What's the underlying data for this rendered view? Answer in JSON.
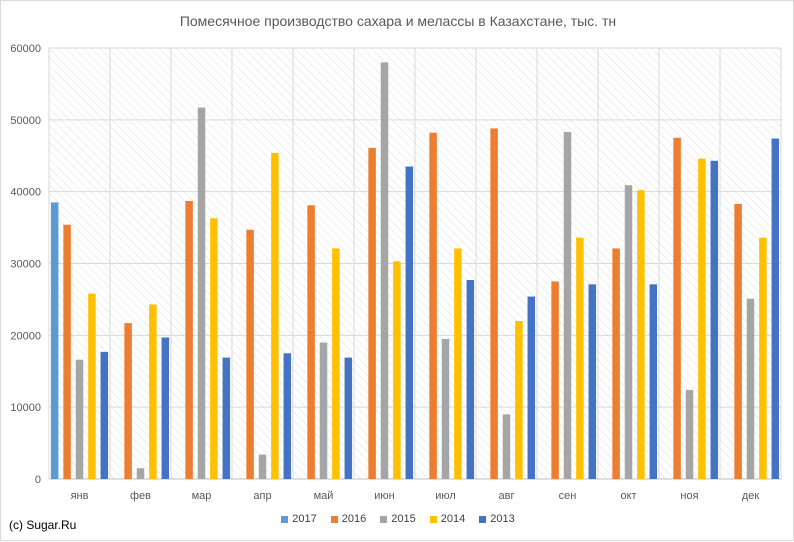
{
  "chart_data": {
    "type": "bar",
    "title": "Помесячное производство сахара и мелассы в Казахстане, тыс. тн",
    "categories": [
      "янв",
      "фев",
      "мар",
      "апр",
      "май",
      "июн",
      "июл",
      "авг",
      "сен",
      "окт",
      "ноя",
      "дек"
    ],
    "ylim": [
      0,
      60000
    ],
    "yticks": [
      "0",
      "10000",
      "20000",
      "30000",
      "40000",
      "50000",
      "60000"
    ],
    "grid": true,
    "legend_position": "bottom",
    "series": [
      {
        "name": "2017",
        "color": "#5b9bd5",
        "values": [
          38500,
          null,
          null,
          null,
          null,
          null,
          null,
          null,
          null,
          null,
          null,
          null
        ]
      },
      {
        "name": "2016",
        "color": "#ed7d31",
        "values": [
          35400,
          21700,
          38700,
          34700,
          38100,
          46100,
          48200,
          48800,
          27500,
          32100,
          47500,
          38300
        ]
      },
      {
        "name": "2015",
        "color": "#a5a5a5",
        "values": [
          16600,
          1500,
          51700,
          3400,
          19000,
          58000,
          19500,
          9000,
          48300,
          40900,
          12400,
          25100
        ]
      },
      {
        "name": "2014",
        "color": "#ffc000",
        "values": [
          25800,
          24300,
          36300,
          45400,
          32100,
          30300,
          32100,
          22000,
          33600,
          40200,
          44600,
          33600
        ]
      },
      {
        "name": "2013",
        "color": "#4472c4",
        "values": [
          17700,
          19700,
          16900,
          17500,
          16900,
          43500,
          27700,
          25400,
          27100,
          27100,
          44300,
          47400
        ]
      }
    ]
  },
  "credit": "(c) Sugar.Ru"
}
